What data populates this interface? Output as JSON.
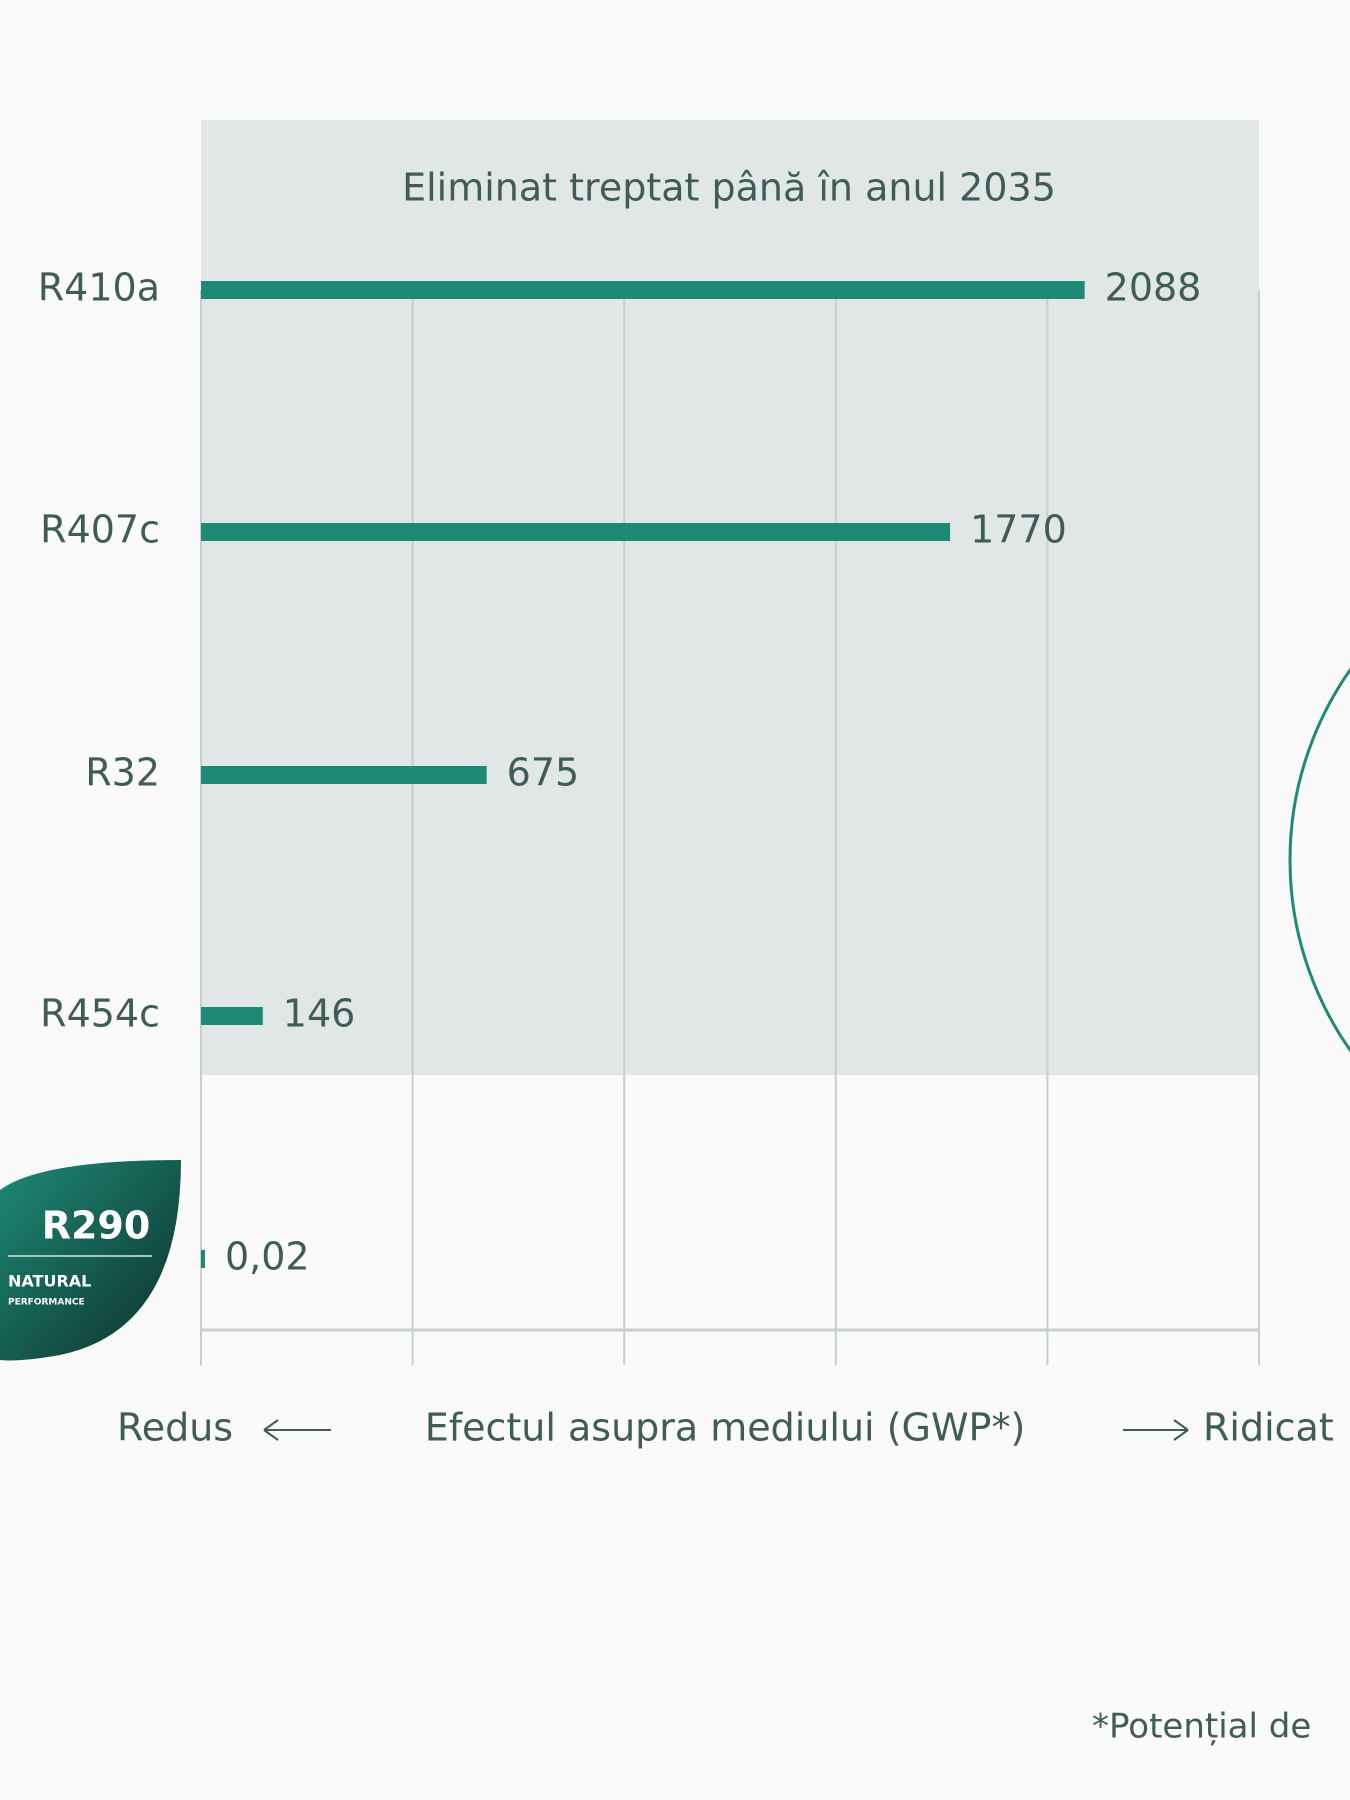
{
  "chart_data": {
    "type": "bar",
    "orientation": "horizontal",
    "annotation": "Eliminat treptat până în anul  2035",
    "categories": [
      "R410a",
      "R407c",
      "R32",
      "R454c",
      "R290"
    ],
    "values": [
      2088,
      1770,
      675,
      146,
      0.02
    ],
    "value_labels": [
      "2088",
      "1770",
      "675",
      "146",
      "0,02"
    ],
    "color": "#1e8a76",
    "xlim": [
      0,
      2500
    ],
    "xticks": [
      0,
      500,
      1000,
      1500,
      2000,
      2500
    ],
    "grid": true,
    "x_label": "Efectul asupra mediului (GWP*)",
    "x_low_label": "Redus",
    "x_high_label": "Ridicat",
    "badge_lines": [
      "NATURAL",
      "PERFORMANCE"
    ],
    "footnote": "*Potențial de"
  }
}
